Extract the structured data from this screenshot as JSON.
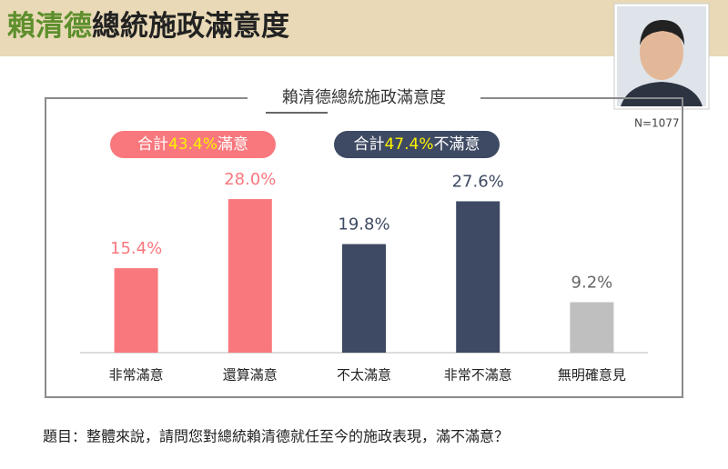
{
  "header": {
    "title_name": "賴清德",
    "title_rest": "總統施政滿意度"
  },
  "sample_size": "N=1077",
  "summaries": [
    {
      "prefix": "合計",
      "percent": "43.4%",
      "suffix": "滿意"
    },
    {
      "prefix": "合計",
      "percent": "47.4%",
      "suffix": "不滿意"
    }
  ],
  "question": "題目：整體來說，請問您對總統賴清德就任至今的施政表現，滿不滿意？",
  "chart_data": {
    "type": "bar",
    "title": "賴清德總統施政滿意度",
    "categories": [
      "非常滿意",
      "還算滿意",
      "不太滿意",
      "非常不滿意",
      "無明確意見"
    ],
    "values": [
      15.4,
      28.0,
      19.8,
      27.6,
      9.2
    ],
    "value_labels": [
      "15.4%",
      "28.0%",
      "19.8%",
      "27.6%",
      "9.2%"
    ],
    "colors": [
      "#f8787e",
      "#f8787e",
      "#3e4a63",
      "#3e4a63",
      "#bfbfbf"
    ],
    "ylim": [
      0,
      30
    ]
  }
}
